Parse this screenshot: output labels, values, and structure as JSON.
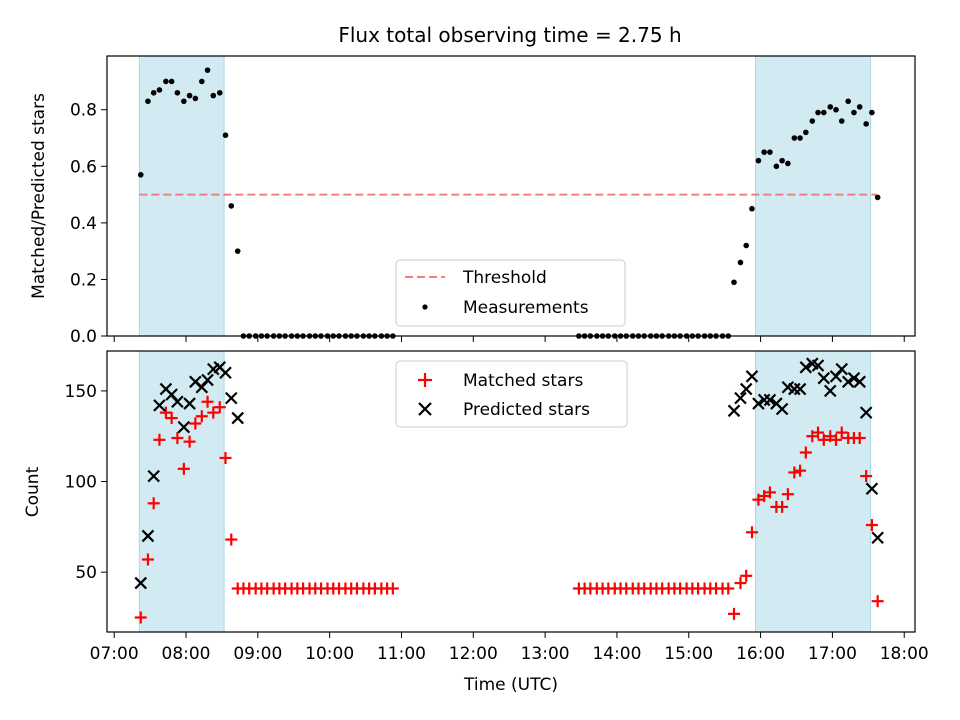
{
  "title": "Flux total observing time = 2.75 h",
  "colors": {
    "threshold": "#f08080",
    "measurement": "#000000",
    "matched": "#ff0000",
    "predicted": "#000000",
    "shade": "#add8e6"
  },
  "chart_data": [
    {
      "type": "scatter",
      "panel": "top",
      "xlabel": "",
      "ylabel": "Matched/Predicted stars",
      "xlim": [
        6.9,
        18.15
      ],
      "ylim": [
        0.0,
        0.99
      ],
      "yticks": [
        0.0,
        0.2,
        0.4,
        0.6,
        0.8
      ],
      "ytick_labels": [
        "0.0",
        "0.2",
        "0.4",
        "0.6",
        "0.8"
      ],
      "shaded_intervals": [
        [
          7.35,
          8.53
        ],
        [
          15.93,
          17.53
        ]
      ],
      "threshold": {
        "name": "Threshold",
        "y": 0.5,
        "x_range": [
          7.35,
          17.62
        ],
        "style": "dashed"
      },
      "legend": {
        "position": "lower-center",
        "entries": [
          "Threshold",
          "Measurements"
        ]
      },
      "series": [
        {
          "name": "Measurements",
          "x": [
            7.37,
            7.47,
            7.55,
            7.63,
            7.72,
            7.8,
            7.88,
            7.97,
            8.05,
            8.13,
            8.22,
            8.3,
            8.38,
            8.47,
            8.55,
            8.63,
            8.72,
            8.8,
            8.88,
            8.97,
            9.05,
            9.13,
            9.22,
            9.3,
            9.38,
            9.47,
            9.55,
            9.63,
            9.72,
            9.8,
            9.88,
            9.97,
            10.05,
            10.13,
            10.22,
            10.3,
            10.38,
            10.47,
            10.55,
            10.63,
            10.72,
            10.8,
            10.88,
            13.47,
            13.55,
            13.63,
            13.72,
            13.8,
            13.88,
            13.97,
            14.05,
            14.13,
            14.22,
            14.3,
            14.38,
            14.47,
            14.55,
            14.63,
            14.72,
            14.8,
            14.88,
            14.97,
            15.05,
            15.13,
            15.22,
            15.3,
            15.38,
            15.47,
            15.55,
            15.63,
            15.72,
            15.8,
            15.88,
            15.97,
            16.05,
            16.13,
            16.22,
            16.3,
            16.38,
            16.47,
            16.55,
            16.63,
            16.72,
            16.8,
            16.88,
            16.97,
            17.05,
            17.13,
            17.22,
            17.3,
            17.38,
            17.47,
            17.55,
            17.63
          ],
          "y": [
            0.57,
            0.83,
            0.86,
            0.87,
            0.9,
            0.9,
            0.86,
            0.83,
            0.85,
            0.84,
            0.9,
            0.94,
            0.85,
            0.86,
            0.71,
            0.46,
            0.3,
            0.0,
            0.0,
            0.0,
            0.0,
            0.0,
            0.0,
            0.0,
            0.0,
            0.0,
            0.0,
            0.0,
            0.0,
            0.0,
            0.0,
            0.0,
            0.0,
            0.0,
            0.0,
            0.0,
            0.0,
            0.0,
            0.0,
            0.0,
            0.0,
            0.0,
            0.0,
            0.0,
            0.0,
            0.0,
            0.0,
            0.0,
            0.0,
            0.0,
            0.0,
            0.0,
            0.0,
            0.0,
            0.0,
            0.0,
            0.0,
            0.0,
            0.0,
            0.0,
            0.0,
            0.0,
            0.0,
            0.0,
            0.0,
            0.0,
            0.0,
            0.0,
            0.0,
            0.19,
            0.26,
            0.32,
            0.45,
            0.62,
            0.65,
            0.65,
            0.6,
            0.62,
            0.61,
            0.7,
            0.7,
            0.72,
            0.76,
            0.79,
            0.79,
            0.81,
            0.8,
            0.76,
            0.83,
            0.79,
            0.81,
            0.75,
            0.79,
            0.49
          ]
        }
      ]
    },
    {
      "type": "scatter",
      "panel": "bottom",
      "xlabel": "Time (UTC)",
      "ylabel": "Count",
      "xlim": [
        6.9,
        18.15
      ],
      "ylim": [
        17,
        172
      ],
      "yticks": [
        50,
        100,
        150
      ],
      "ytick_labels": [
        "50",
        "100",
        "150"
      ],
      "xticks": [
        7,
        8,
        9,
        10,
        11,
        12,
        13,
        14,
        15,
        16,
        17,
        18
      ],
      "xtick_labels": [
        "07:00",
        "08:00",
        "09:00",
        "10:00",
        "11:00",
        "12:00",
        "13:00",
        "14:00",
        "15:00",
        "16:00",
        "17:00",
        "18:00"
      ],
      "shaded_intervals": [
        [
          7.35,
          8.53
        ],
        [
          15.93,
          17.53
        ]
      ],
      "legend": {
        "position": "upper-center",
        "entries": [
          "Matched stars",
          "Predicted stars"
        ]
      },
      "series": [
        {
          "name": "Matched stars",
          "marker": "+",
          "x": [
            7.37,
            7.47,
            7.55,
            7.63,
            7.72,
            7.8,
            7.88,
            7.97,
            8.05,
            8.13,
            8.22,
            8.3,
            8.38,
            8.47,
            8.55,
            8.63,
            8.72,
            8.8,
            8.88,
            8.97,
            9.05,
            9.13,
            9.22,
            9.3,
            9.38,
            9.47,
            9.55,
            9.63,
            9.72,
            9.8,
            9.88,
            9.97,
            10.05,
            10.13,
            10.22,
            10.3,
            10.38,
            10.47,
            10.55,
            10.63,
            10.72,
            10.8,
            10.88,
            13.47,
            13.55,
            13.63,
            13.72,
            13.8,
            13.88,
            13.97,
            14.05,
            14.13,
            14.22,
            14.3,
            14.38,
            14.47,
            14.55,
            14.63,
            14.72,
            14.8,
            14.88,
            14.97,
            15.05,
            15.13,
            15.22,
            15.3,
            15.38,
            15.47,
            15.55,
            15.63,
            15.72,
            15.8,
            15.88,
            15.97,
            16.05,
            16.13,
            16.22,
            16.3,
            16.38,
            16.47,
            16.55,
            16.63,
            16.72,
            16.8,
            16.88,
            16.97,
            17.05,
            17.13,
            17.22,
            17.3,
            17.38,
            17.47,
            17.55,
            17.63
          ],
          "y": [
            25,
            57,
            88,
            123,
            138,
            135,
            124,
            107,
            122,
            132,
            136,
            144,
            138,
            141,
            113,
            68,
            41,
            41,
            41,
            41,
            41,
            41,
            41,
            41,
            41,
            41,
            41,
            41,
            41,
            41,
            41,
            41,
            41,
            41,
            41,
            41,
            41,
            41,
            41,
            41,
            41,
            41,
            41,
            41,
            41,
            41,
            41,
            41,
            41,
            41,
            41,
            41,
            41,
            41,
            41,
            41,
            41,
            41,
            41,
            41,
            41,
            41,
            41,
            41,
            41,
            41,
            41,
            41,
            41,
            27,
            44,
            48,
            72,
            90,
            92,
            94,
            86,
            86,
            93,
            105,
            106,
            116,
            125,
            127,
            123,
            125,
            123,
            127,
            124,
            124,
            124,
            103,
            76,
            34
          ]
        },
        {
          "name": "Predicted stars",
          "marker": "x",
          "x": [
            7.37,
            7.47,
            7.55,
            7.63,
            7.72,
            7.8,
            7.88,
            7.97,
            8.05,
            8.13,
            8.22,
            8.3,
            8.38,
            8.47,
            8.55,
            8.63,
            8.72,
            15.63,
            15.72,
            15.8,
            15.88,
            15.97,
            16.05,
            16.13,
            16.22,
            16.3,
            16.38,
            16.47,
            16.55,
            16.63,
            16.72,
            16.8,
            16.88,
            16.97,
            17.05,
            17.13,
            17.22,
            17.3,
            17.38,
            17.47,
            17.55,
            17.63
          ],
          "y": [
            44,
            70,
            103,
            142,
            151,
            148,
            144,
            130,
            143,
            155,
            152,
            156,
            162,
            163,
            160,
            146,
            135,
            139,
            146,
            151,
            158,
            143,
            145,
            145,
            143,
            140,
            152,
            151,
            151,
            163,
            165,
            164,
            157,
            150,
            158,
            162,
            155,
            157,
            155,
            138,
            96,
            69
          ]
        }
      ]
    }
  ]
}
